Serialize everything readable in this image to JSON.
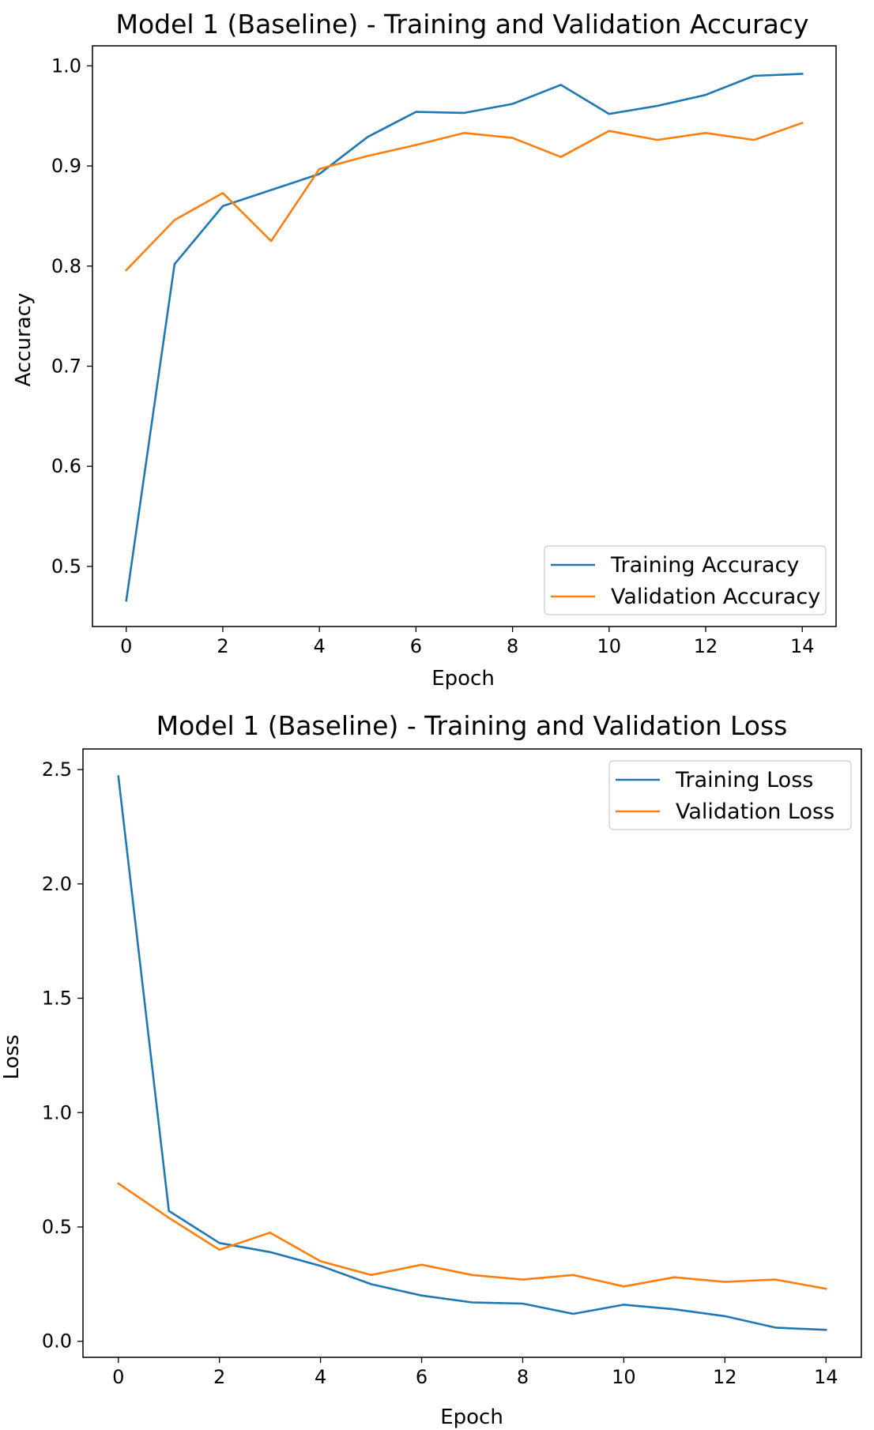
{
  "chart_data": [
    {
      "type": "line",
      "title": "Model 1 (Baseline) - Training and Validation Accuracy",
      "xlabel": "Epoch",
      "ylabel": "Accuracy",
      "x": [
        0,
        1,
        2,
        3,
        4,
        5,
        6,
        7,
        8,
        9,
        10,
        11,
        12,
        13,
        14
      ],
      "xlim": [
        -0.7,
        14.7
      ],
      "ylim": [
        0.44,
        1.02
      ],
      "xticks": [
        0,
        2,
        4,
        6,
        8,
        10,
        12,
        14
      ],
      "xtick_labels": [
        "0",
        "2",
        "4",
        "6",
        "8",
        "10",
        "12",
        "14"
      ],
      "yticks": [
        0.5,
        0.6,
        0.7,
        0.8,
        0.9,
        1.0
      ],
      "ytick_labels": [
        "0.5",
        "0.6",
        "0.7",
        "0.8",
        "0.9",
        "1.0"
      ],
      "grid": false,
      "legend_position": "lower-right",
      "series": [
        {
          "name": "Training Accuracy",
          "color": "#1f77b4",
          "values": [
            0.466,
            0.802,
            0.86,
            0.876,
            0.892,
            0.929,
            0.954,
            0.953,
            0.962,
            0.981,
            0.952,
            0.96,
            0.971,
            0.99,
            0.992
          ]
        },
        {
          "name": "Validation Accuracy",
          "color": "#ff7f0e",
          "values": [
            0.796,
            0.846,
            0.873,
            0.825,
            0.897,
            0.91,
            0.921,
            0.933,
            0.928,
            0.909,
            0.935,
            0.926,
            0.933,
            0.926,
            0.943
          ]
        }
      ]
    },
    {
      "type": "line",
      "title": "Model 1 (Baseline) - Training and Validation Loss",
      "xlabel": "Epoch",
      "ylabel": "Loss",
      "x": [
        0,
        1,
        2,
        3,
        4,
        5,
        6,
        7,
        8,
        9,
        10,
        11,
        12,
        13,
        14
      ],
      "xlim": [
        -0.7,
        14.7
      ],
      "ylim": [
        -0.07,
        2.59
      ],
      "xticks": [
        0,
        2,
        4,
        6,
        8,
        10,
        12,
        14
      ],
      "xtick_labels": [
        "0",
        "2",
        "4",
        "6",
        "8",
        "10",
        "12",
        "14"
      ],
      "yticks": [
        0.0,
        0.5,
        1.0,
        1.5,
        2.0,
        2.5
      ],
      "ytick_labels": [
        "0.0",
        "0.5",
        "1.0",
        "1.5",
        "2.0",
        "2.5"
      ],
      "grid": false,
      "legend_position": "upper-right",
      "series": [
        {
          "name": "Training Loss",
          "color": "#1f77b4",
          "values": [
            2.47,
            0.57,
            0.43,
            0.39,
            0.33,
            0.25,
            0.2,
            0.17,
            0.165,
            0.12,
            0.16,
            0.14,
            0.11,
            0.06,
            0.05
          ]
        },
        {
          "name": "Validation Loss",
          "color": "#ff7f0e",
          "values": [
            0.69,
            0.54,
            0.4,
            0.475,
            0.35,
            0.29,
            0.335,
            0.29,
            0.27,
            0.29,
            0.24,
            0.28,
            0.26,
            0.27,
            0.23
          ]
        }
      ]
    }
  ]
}
